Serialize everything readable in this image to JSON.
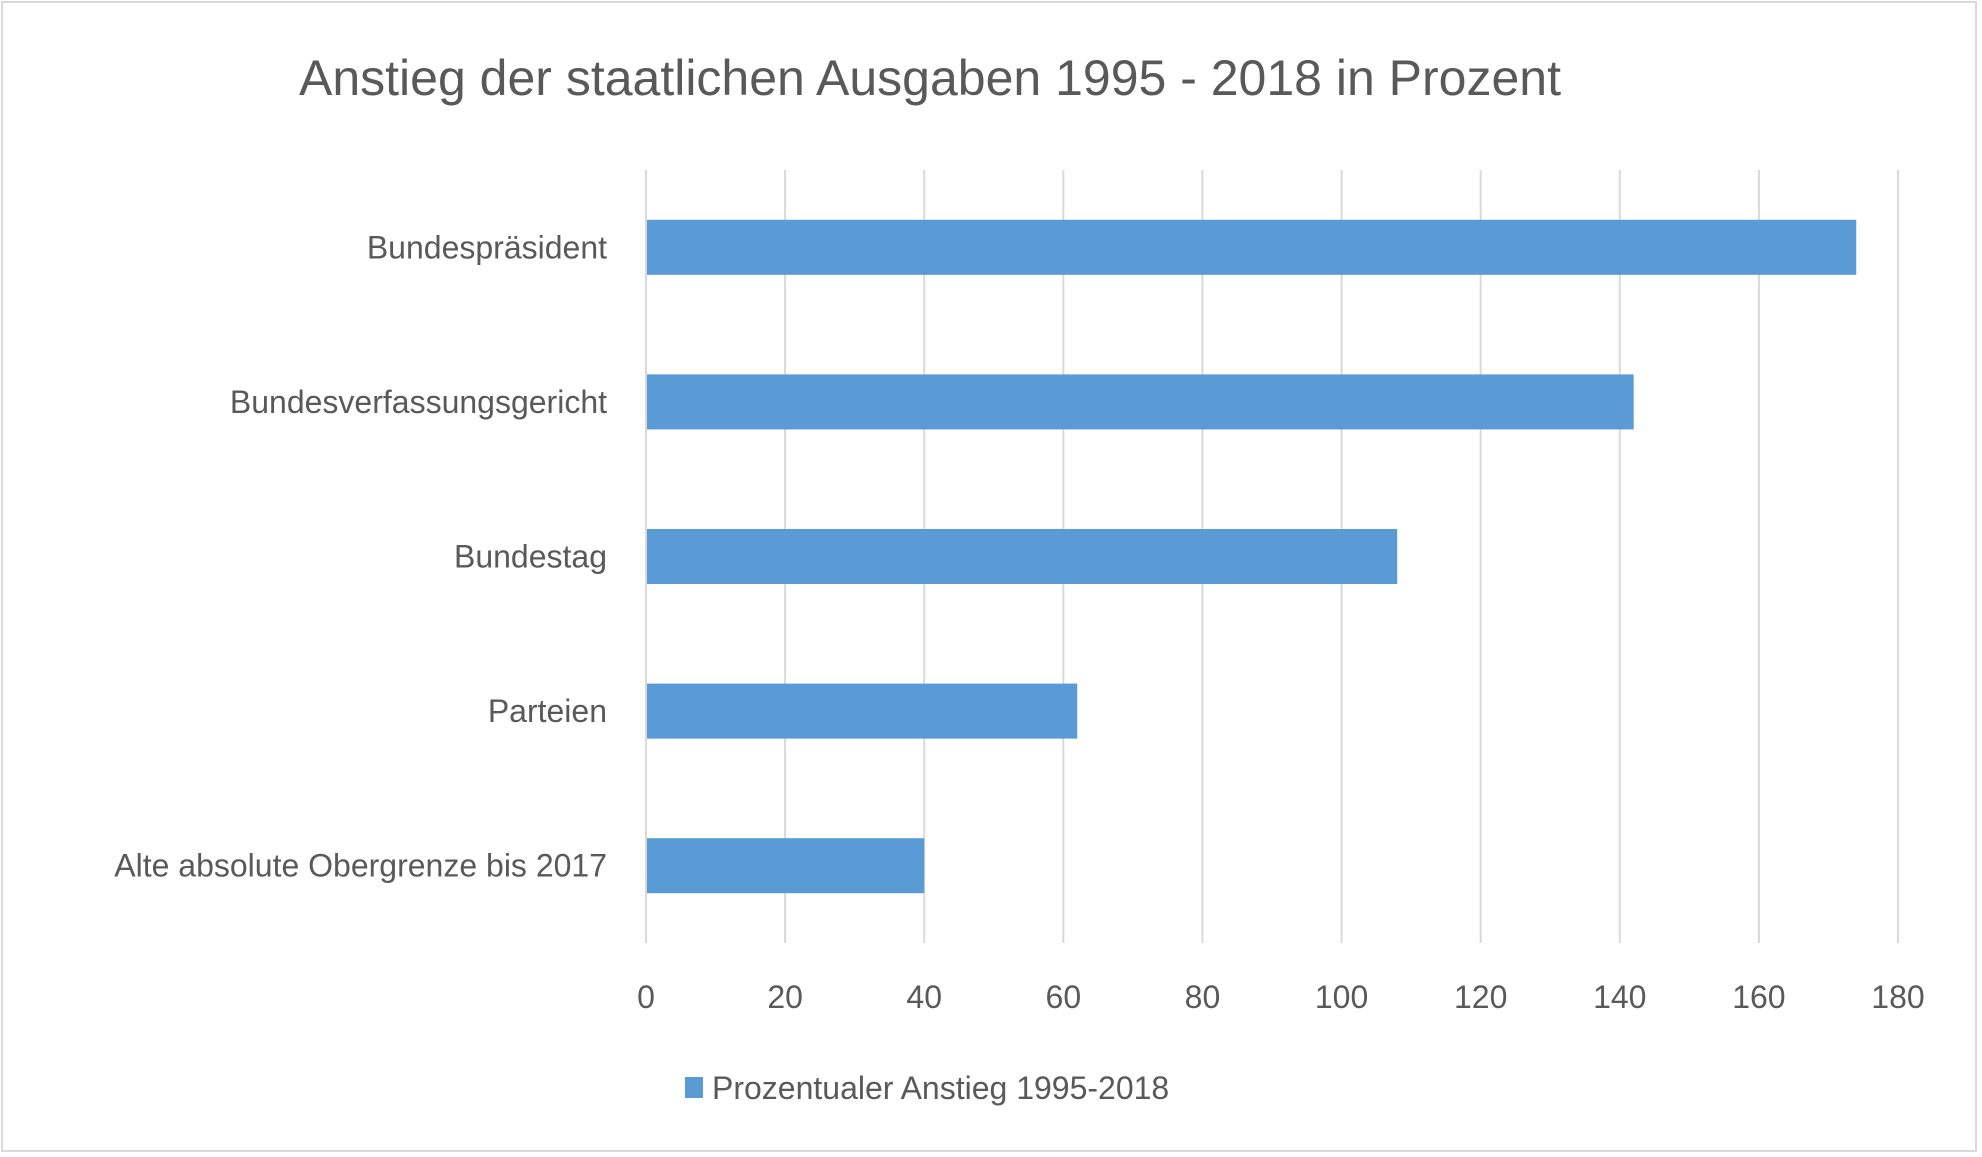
{
  "chart_data": {
    "type": "bar",
    "orientation": "horizontal",
    "title": "Anstieg der staatlichen Ausgaben 1995 - 2018 in Prozent",
    "xlabel": "",
    "ylabel": "",
    "categories": [
      "Bundespräsident",
      "Bundesverfassungsgericht",
      "Bundestag",
      "Parteien",
      "Alte absolute Obergrenze bis 2017"
    ],
    "series": [
      {
        "name": "Prozentualer Anstieg 1995-2018",
        "color": "#5b9bd5",
        "values": [
          174,
          142,
          108,
          62,
          40
        ]
      }
    ],
    "xlim": [
      0,
      180
    ],
    "xticks": [
      0,
      20,
      40,
      60,
      80,
      100,
      120,
      140,
      160,
      180
    ],
    "xtick_labels": [
      "0",
      "20",
      "40",
      "60",
      "80",
      "100",
      "120",
      "140",
      "160",
      "180"
    ],
    "grid": true,
    "gridline_color": "#d9d9d9",
    "legend": "bottom-center"
  }
}
